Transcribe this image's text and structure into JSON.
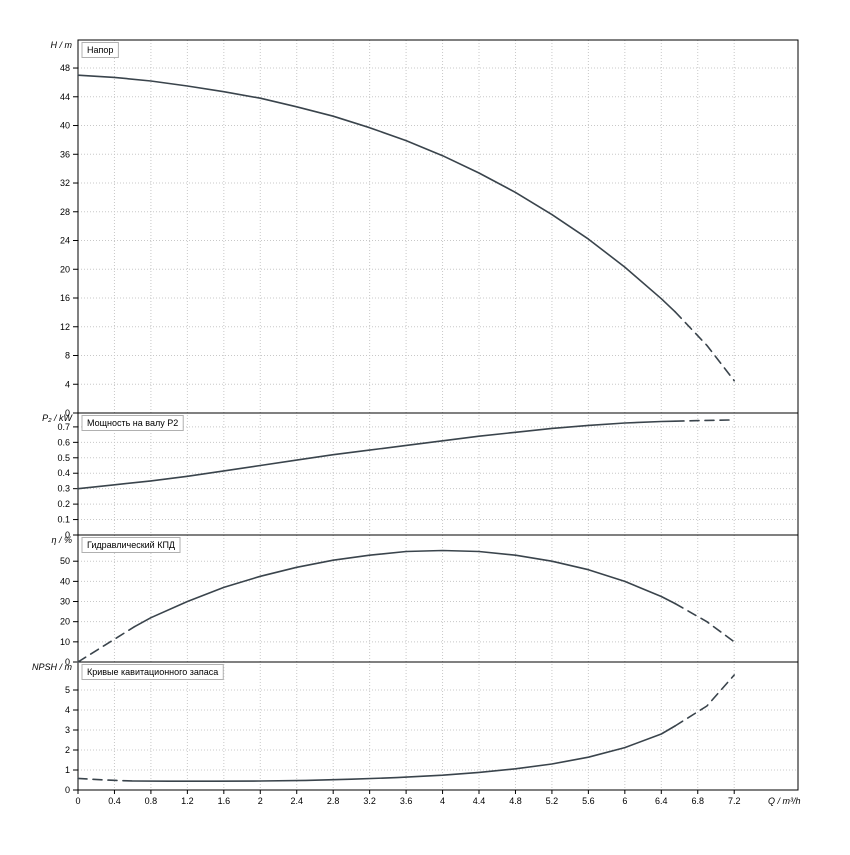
{
  "chart_data": {
    "type": "line",
    "title": "",
    "xlabel": "Q / m³/h",
    "xlim": [
      0,
      7.9
    ],
    "x_ticks": [
      0,
      0.4,
      0.8,
      1.2,
      1.6,
      2,
      2.4,
      2.8,
      3.2,
      3.6,
      4,
      4.4,
      4.8,
      5.2,
      5.6,
      6,
      6.4,
      6.8,
      7.2
    ],
    "x_tick_labels": [
      "0",
      "0.4",
      "0.8",
      "1.2",
      "1.6",
      "2",
      "2.4",
      "2.8",
      "3.2",
      "3.6",
      "4",
      "4.4",
      "4.8",
      "5.2",
      "5.6",
      "6",
      "6.4",
      "6.8",
      "7.2"
    ],
    "grid": true,
    "legend_position": "none",
    "colors": {
      "curve": "#3a444c",
      "grid": "#c8c8c8",
      "axis": "#000000",
      "title_box_border": "#b0b0b0",
      "background": "#ffffff"
    },
    "panels": [
      {
        "name": "head",
        "title": "Напор",
        "ylabel": "H / m",
        "ylim": [
          0,
          51.9
        ],
        "yticks": [
          0,
          4,
          8,
          12,
          16,
          20,
          24,
          28,
          32,
          36,
          40,
          44,
          48
        ],
        "ytick_labels": [
          "0",
          "4",
          "8",
          "12",
          "16",
          "20",
          "24",
          "28",
          "32",
          "36",
          "40",
          "44",
          "48"
        ],
        "segments": [
          {
            "style": "solid",
            "points": [
              [
                0,
                47.0
              ],
              [
                0.4,
                46.7
              ],
              [
                0.8,
                46.2
              ],
              [
                1.2,
                45.5
              ],
              [
                1.6,
                44.7
              ],
              [
                2.0,
                43.8
              ],
              [
                2.4,
                42.6
              ],
              [
                2.8,
                41.3
              ],
              [
                3.2,
                39.7
              ],
              [
                3.6,
                37.9
              ],
              [
                4.0,
                35.8
              ],
              [
                4.4,
                33.4
              ],
              [
                4.8,
                30.7
              ],
              [
                5.2,
                27.6
              ],
              [
                5.6,
                24.2
              ],
              [
                6.0,
                20.3
              ],
              [
                6.4,
                15.9
              ],
              [
                6.55,
                14.1
              ]
            ]
          },
          {
            "style": "dashed",
            "points": [
              [
                6.55,
                14.1
              ],
              [
                6.9,
                9.4
              ],
              [
                7.2,
                4.5
              ]
            ]
          }
        ]
      },
      {
        "name": "shaft-power",
        "title": "Мощность на валу P2",
        "ylabel": "P₂ / kW",
        "ylim": [
          0,
          0.79
        ],
        "yticks": [
          0,
          0.1,
          0.2,
          0.3,
          0.4,
          0.5,
          0.6,
          0.7
        ],
        "ytick_labels": [
          "0",
          "0.1",
          "0.2",
          "0.3",
          "0.4",
          "0.5",
          "0.6",
          "0.7"
        ],
        "segments": [
          {
            "style": "solid",
            "points": [
              [
                0,
                0.3
              ],
              [
                0.4,
                0.325
              ],
              [
                0.8,
                0.35
              ],
              [
                1.2,
                0.38
              ],
              [
                1.6,
                0.415
              ],
              [
                2.0,
                0.45
              ],
              [
                2.4,
                0.485
              ],
              [
                2.8,
                0.52
              ],
              [
                3.2,
                0.55
              ],
              [
                3.6,
                0.58
              ],
              [
                4.0,
                0.61
              ],
              [
                4.4,
                0.64
              ],
              [
                4.8,
                0.665
              ],
              [
                5.2,
                0.69
              ],
              [
                5.6,
                0.71
              ],
              [
                6.0,
                0.725
              ],
              [
                6.4,
                0.735
              ],
              [
                6.55,
                0.737
              ]
            ]
          },
          {
            "style": "dashed",
            "points": [
              [
                6.55,
                0.737
              ],
              [
                6.9,
                0.742
              ],
              [
                7.2,
                0.745
              ]
            ]
          }
        ]
      },
      {
        "name": "hydraulic-efficiency",
        "title": "Гидравлический КПД",
        "ylabel": "η / %",
        "ylim": [
          0,
          63
        ],
        "yticks": [
          0,
          10,
          20,
          30,
          40,
          50
        ],
        "ytick_labels": [
          "0",
          "10",
          "20",
          "30",
          "40",
          "50"
        ],
        "segments": [
          {
            "style": "dashed",
            "points": [
              [
                0,
                0
              ],
              [
                0.3,
                8.5
              ],
              [
                0.62,
                17.5
              ]
            ]
          },
          {
            "style": "solid",
            "points": [
              [
                0.62,
                17.5
              ],
              [
                0.8,
                22
              ],
              [
                1.2,
                30
              ],
              [
                1.6,
                37
              ],
              [
                2.0,
                42.5
              ],
              [
                2.4,
                47
              ],
              [
                2.8,
                50.5
              ],
              [
                3.2,
                53
              ],
              [
                3.6,
                54.8
              ],
              [
                4.0,
                55.3
              ],
              [
                4.4,
                54.8
              ],
              [
                4.8,
                53
              ],
              [
                5.2,
                50
              ],
              [
                5.6,
                45.8
              ],
              [
                6.0,
                40
              ],
              [
                6.4,
                32.5
              ],
              [
                6.55,
                29
              ]
            ]
          },
          {
            "style": "dashed",
            "points": [
              [
                6.55,
                29
              ],
              [
                6.9,
                20
              ],
              [
                7.2,
                10
              ]
            ]
          }
        ]
      },
      {
        "name": "npsh",
        "title": "Кривые кавитационного запаса",
        "ylabel": "NPSH / m",
        "ylim": [
          0,
          6.4
        ],
        "yticks": [
          0,
          1,
          2,
          3,
          4,
          5
        ],
        "ytick_labels": [
          "0",
          "1",
          "2",
          "3",
          "4",
          "5"
        ],
        "segments": [
          {
            "style": "dashed",
            "points": [
              [
                0,
                0.58
              ],
              [
                0.3,
                0.5
              ],
              [
                0.6,
                0.45
              ]
            ]
          },
          {
            "style": "solid",
            "points": [
              [
                0.6,
                0.45
              ],
              [
                1.0,
                0.44
              ],
              [
                1.5,
                0.44
              ],
              [
                2.0,
                0.45
              ],
              [
                2.5,
                0.48
              ],
              [
                3.0,
                0.54
              ],
              [
                3.5,
                0.62
              ],
              [
                4.0,
                0.74
              ],
              [
                4.4,
                0.88
              ],
              [
                4.8,
                1.06
              ],
              [
                5.2,
                1.3
              ],
              [
                5.6,
                1.64
              ],
              [
                6.0,
                2.12
              ],
              [
                6.4,
                2.8
              ],
              [
                6.55,
                3.2
              ]
            ]
          },
          {
            "style": "dashed",
            "points": [
              [
                6.55,
                3.2
              ],
              [
                6.9,
                4.2
              ],
              [
                7.2,
                5.75
              ]
            ]
          }
        ]
      }
    ]
  }
}
